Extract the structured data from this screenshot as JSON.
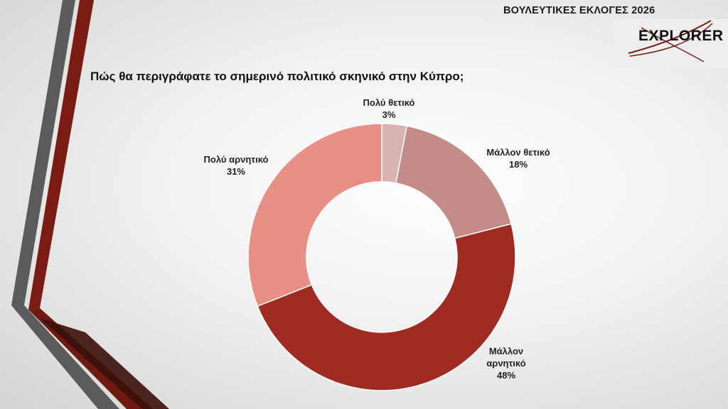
{
  "header": {
    "title": "ΒΟΥΛΕΥΤΙΚΕΣ ΕΚΛΟΓΕΣ 2026",
    "logo_text": "EXPLORER"
  },
  "question": "Πώς θα περιγράφατε το σημερινό πολιτικό σκηνικό στην Κύπρο;",
  "chart_data": {
    "type": "pie",
    "donut": true,
    "title": "Πώς θα περιγράφατε το σημερινό πολιτικό σκηνικό στην Κύπρο;",
    "categories": [
      "Πολύ θετικό",
      "Μάλλον θετικό",
      "Μάλλον αρνητικό",
      "Πολύ αρνητικό"
    ],
    "values": [
      3,
      18,
      48,
      31
    ],
    "value_labels": [
      "3%",
      "18%",
      "48%",
      "31%"
    ],
    "colors": [
      "#d9b3b1",
      "#c48b88",
      "#a02b22",
      "#e88f86"
    ],
    "legend": "none"
  }
}
